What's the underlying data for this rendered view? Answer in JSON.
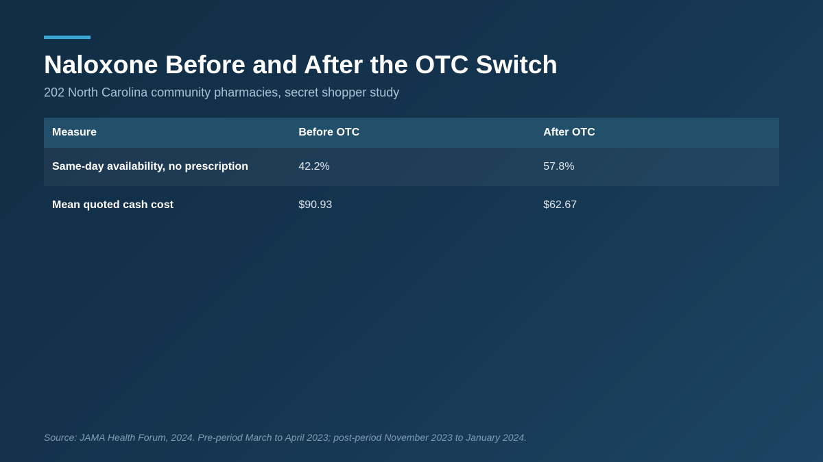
{
  "header": {
    "title": "Naloxone Before and After the OTC Switch",
    "subtitle": "202 North Carolina community pharmacies, secret shopper study"
  },
  "table": {
    "columns": [
      "Measure",
      "Before OTC",
      "After OTC"
    ],
    "rows": [
      {
        "measure": "Same-day availability, no prescription",
        "before": "42.2%",
        "after": "57.8%"
      },
      {
        "measure": "Mean quoted cash cost",
        "before": "$90.93",
        "after": "$62.67"
      }
    ]
  },
  "footer": {
    "source": "Source: JAMA Health Forum, 2024. Pre-period March to April 2023; post-period November 2023 to January 2024."
  },
  "colors": {
    "accent": "#3aa6d6",
    "background": "#15344f",
    "header_row": "#22506b"
  }
}
